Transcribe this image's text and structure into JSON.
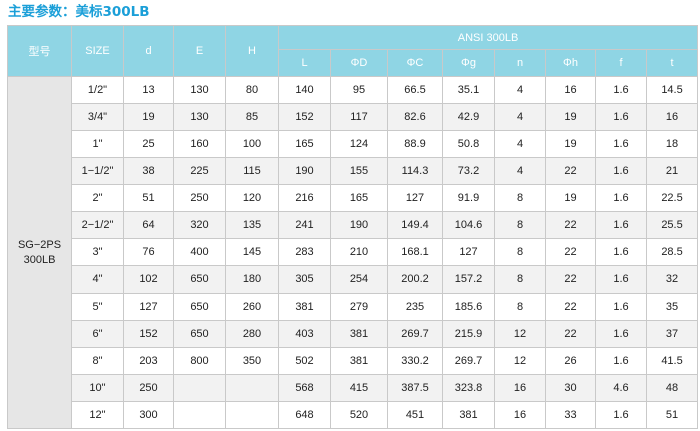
{
  "title": "主要参数：美标300LB",
  "table": {
    "group_header": "ANSI 300LB",
    "fixed_headers": [
      "型号",
      "SIZE",
      "d",
      "E",
      "H"
    ],
    "sub_headers": [
      "L",
      "ΦD",
      "ΦC",
      "Φg",
      "n",
      "Φh",
      "f",
      "t"
    ],
    "model_line1": "SG−2PS",
    "model_line2": "300LB",
    "rows": [
      [
        "1/2\"",
        "13",
        "130",
        "80",
        "140",
        "95",
        "66.5",
        "35.1",
        "4",
        "16",
        "1.6",
        "14.5"
      ],
      [
        "3/4\"",
        "19",
        "130",
        "85",
        "152",
        "117",
        "82.6",
        "42.9",
        "4",
        "19",
        "1.6",
        "16"
      ],
      [
        "1\"",
        "25",
        "160",
        "100",
        "165",
        "124",
        "88.9",
        "50.8",
        "4",
        "19",
        "1.6",
        "18"
      ],
      [
        "1−1/2\"",
        "38",
        "225",
        "115",
        "190",
        "155",
        "114.3",
        "73.2",
        "4",
        "22",
        "1.6",
        "21"
      ],
      [
        "2\"",
        "51",
        "250",
        "120",
        "216",
        "165",
        "127",
        "91.9",
        "8",
        "19",
        "1.6",
        "22.5"
      ],
      [
        "2−1/2\"",
        "64",
        "320",
        "135",
        "241",
        "190",
        "149.4",
        "104.6",
        "8",
        "22",
        "1.6",
        "25.5"
      ],
      [
        "3\"",
        "76",
        "400",
        "145",
        "283",
        "210",
        "168.1",
        "127",
        "8",
        "22",
        "1.6",
        "28.5"
      ],
      [
        "4\"",
        "102",
        "650",
        "180",
        "305",
        "254",
        "200.2",
        "157.2",
        "8",
        "22",
        "1.6",
        "32"
      ],
      [
        "5\"",
        "127",
        "650",
        "260",
        "381",
        "279",
        "235",
        "185.6",
        "8",
        "22",
        "1.6",
        "35"
      ],
      [
        "6\"",
        "152",
        "650",
        "280",
        "403",
        "381",
        "269.7",
        "215.9",
        "12",
        "22",
        "1.6",
        "37"
      ],
      [
        "8\"",
        "203",
        "800",
        "350",
        "502",
        "381",
        "330.2",
        "269.7",
        "12",
        "26",
        "1.6",
        "41.5"
      ],
      [
        "10\"",
        "250",
        "",
        "",
        "568",
        "415",
        "387.5",
        "323.8",
        "16",
        "30",
        "4.6",
        "48"
      ],
      [
        "12\"",
        "300",
        "",
        "",
        "648",
        "520",
        "451",
        "381",
        "16",
        "33",
        "1.6",
        "51"
      ]
    ]
  }
}
